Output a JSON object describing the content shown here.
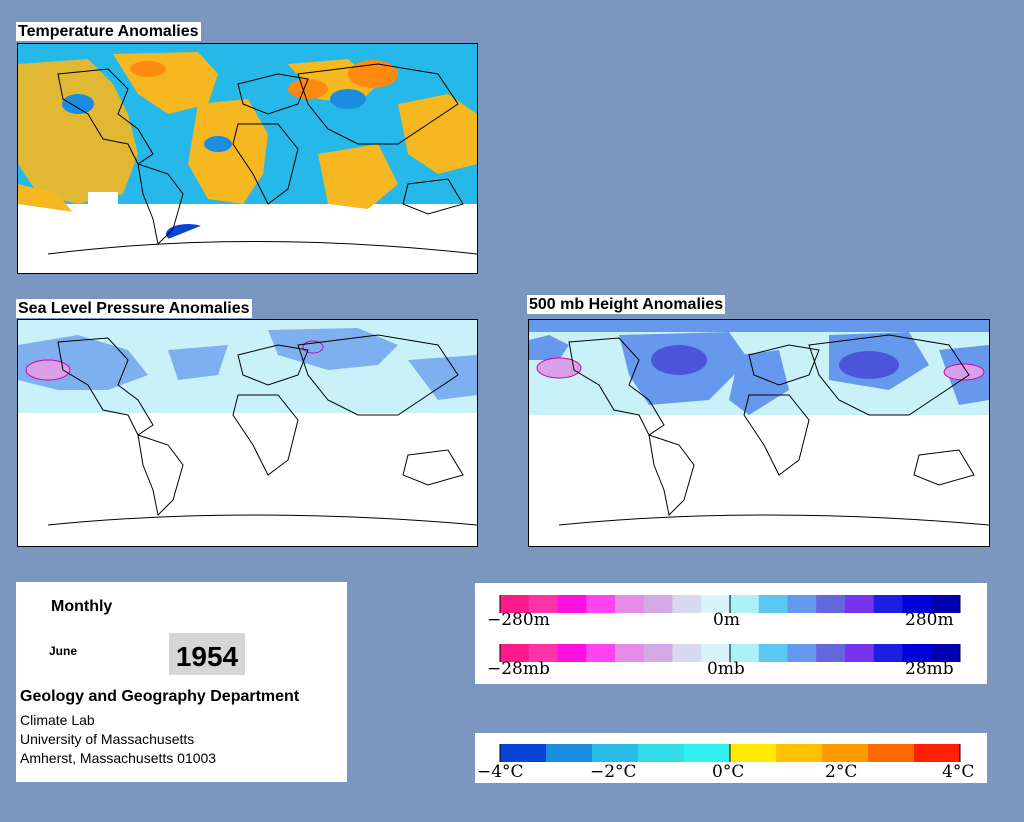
{
  "panels": {
    "temperature": {
      "title": "Temperature Anomalies"
    },
    "slp": {
      "title": "Sea Level Pressure Anomalies"
    },
    "height500": {
      "title": "500 mb Height Anomalies"
    }
  },
  "info": {
    "frequency": "Monthly",
    "month": "June",
    "year": "1954",
    "department": "Geology and Geography Department",
    "lab": "Climate Lab",
    "university": "University of Massachusetts",
    "address": "Amherst, Massachusetts 01003"
  },
  "legends": {
    "height": {
      "labels": [
        "−280m",
        "0m",
        "280m"
      ],
      "colors": [
        "#ff1a8c",
        "#ff33aa",
        "#ff10e0",
        "#ff44f0",
        "#e58ae6",
        "#d4aae6",
        "#d8d8f0",
        "#d8f4fb",
        "#aef0f8",
        "#5ac8f0",
        "#6699ee",
        "#6666dd",
        "#7733ee",
        "#1e1ee0",
        "#0000d8",
        "#0000b0"
      ]
    },
    "pressure": {
      "labels": [
        "−28mb",
        "0mb",
        "28mb"
      ],
      "colors": [
        "#ff1a8c",
        "#ff33aa",
        "#ff10e0",
        "#ff44f0",
        "#e58ae6",
        "#d4aae6",
        "#d8d8f0",
        "#d8f4fb",
        "#aef0f8",
        "#5ac8f0",
        "#6699ee",
        "#6666dd",
        "#7733ee",
        "#1e1ee0",
        "#0000d8",
        "#0000b0"
      ]
    },
    "temperature": {
      "labels": [
        "−4°C",
        "−2°C",
        "0°C",
        "2°C",
        "4°C"
      ],
      "colors": [
        "#0a44d6",
        "#1a8de0",
        "#2abbe8",
        "#30dde8",
        "#30f0f0",
        "#ffea00",
        "#ffc000",
        "#ff9a00",
        "#ff6a00",
        "#ff2000"
      ]
    }
  },
  "colors": {
    "background": "#7b97c0",
    "warm": "#f5b820",
    "cold": "#26b8e8",
    "light_blue": "#c8f2f8",
    "mid_blue": "#6699ee",
    "deep_blue": "#4a55d8"
  }
}
